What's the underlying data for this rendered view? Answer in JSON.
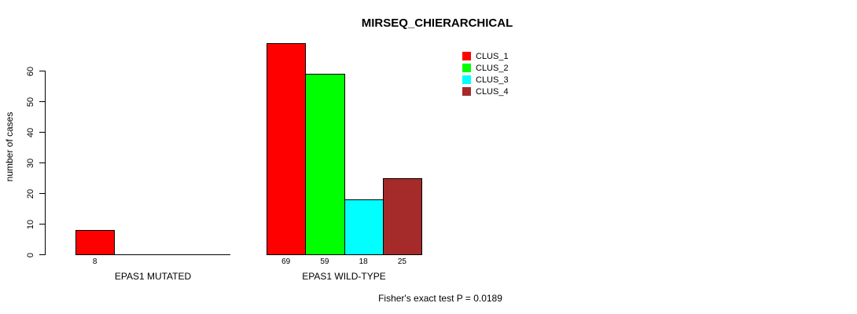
{
  "title": "MIRSEQ_CHIERARCHICAL",
  "chart_data": {
    "type": "bar",
    "title": "MIRSEQ_CHIERARCHICAL",
    "xlabel": "",
    "ylabel": "number of cases",
    "ylim": [
      0,
      60
    ],
    "yticks": [
      0,
      10,
      20,
      30,
      40,
      50,
      60
    ],
    "grid": false,
    "legend_position": "top-right",
    "legend": [
      {
        "label": "CLUS_1",
        "color": "#FF0000"
      },
      {
        "label": "CLUS_2",
        "color": "#00FF00"
      },
      {
        "label": "CLUS_3",
        "color": "#00FFFF"
      },
      {
        "label": "CLUS_4",
        "color": "#A52A2A"
      }
    ],
    "series_colors": [
      "#FF0000",
      "#00FF00",
      "#00FFFF",
      "#A52A2A"
    ],
    "bar_border_color": "#000000",
    "groups": [
      {
        "label": "EPAS1 MUTATED",
        "values": [
          8,
          0,
          0,
          0
        ]
      },
      {
        "label": "EPAS1 WILD-TYPE",
        "values": [
          69,
          59,
          18,
          25
        ]
      }
    ],
    "annotation": "Fisher's exact test P = 0.0189"
  }
}
